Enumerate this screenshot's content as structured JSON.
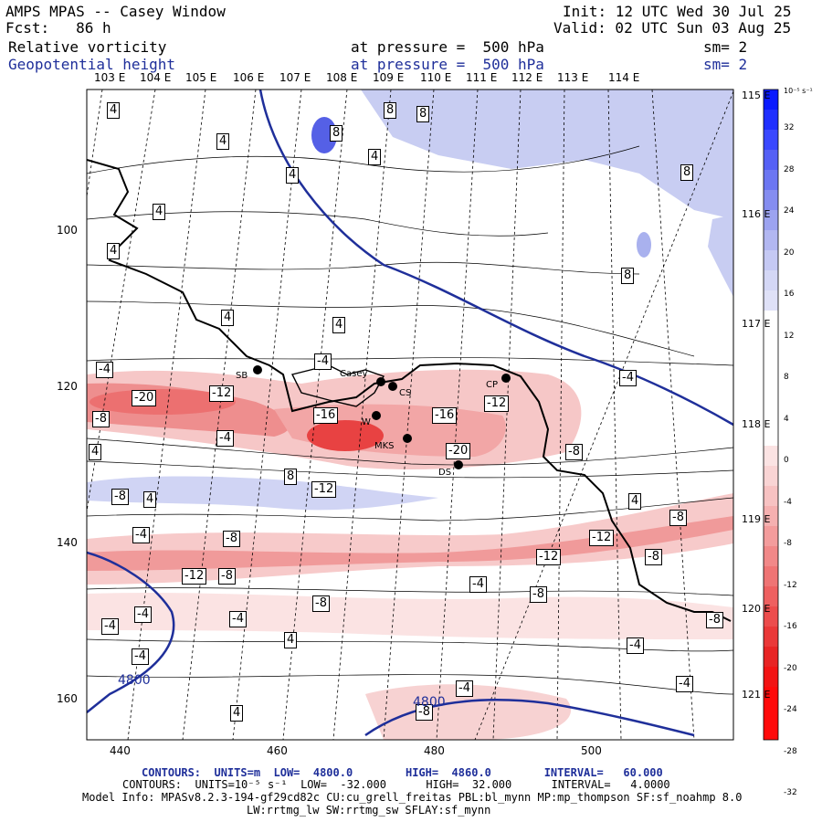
{
  "header": {
    "left": [
      "AMPS MPAS -- Casey Window",
      "Fcst:   86 h",
      "Relative vorticity",
      "Geopotential height"
    ],
    "mid": [
      "at pressure =  500 hPa",
      "at pressure =  500 hPa"
    ],
    "right_init": "Init: 12 UTC Wed 30 Jul 25",
    "right_valid": "Valid: 02 UTC Sun 03 Aug 25",
    "sm": [
      "sm= 2",
      "sm= 2"
    ]
  },
  "top_lon_labels": [
    "103 E",
    "104 E",
    "105 E",
    "106 E",
    "107 E",
    "108 E",
    "109 E",
    "110 E",
    "111 E",
    "112 E",
    "113 E",
    "114 E"
  ],
  "right_lon_labels": [
    "115 E",
    "116 E",
    "117 E",
    "118 E",
    "119 E",
    "120 E",
    "121 E"
  ],
  "y_axis": [
    "100",
    "120",
    "140",
    "160"
  ],
  "x_axis": [
    "440",
    "460",
    "480",
    "500"
  ],
  "colorbar": {
    "units": "10⁻⁵ s⁻¹",
    "labels": [
      "32",
      "28",
      "24",
      "20",
      "16",
      "12",
      "8",
      "4",
      "0",
      "-4",
      "-8",
      "-12",
      "-16",
      "-20",
      "-24",
      "-28",
      "-32"
    ],
    "colors": {
      "strong_pos": "#0a1aff",
      "pos": "#c8cdf2",
      "zero": "#ffffff",
      "neg": "#f6c7c7",
      "strong_neg": "#ff0a0a"
    }
  },
  "stations": [
    {
      "label": "SB"
    },
    {
      "label": "Casey"
    },
    {
      "label": "CS"
    },
    {
      "label": "CP"
    },
    {
      "label": "W"
    },
    {
      "label": "MKS"
    },
    {
      "label": "DS"
    }
  ],
  "contour_labels": [
    "4",
    "8",
    "-4",
    "-8",
    "-12",
    "-16",
    "-20",
    "4800"
  ],
  "footer": {
    "line1": "CONTOURS:  UNITS=m  LOW=  4800.0        HIGH=  4860.0        INTERVAL=   60.000",
    "line2": "CONTOURS:  UNITS=10⁻⁵ s⁻¹  LOW=  -32.000      HIGH=  32.000      INTERVAL=   4.0000",
    "line3": "Model Info: MPASv8.2.3-194-gf29cd82c CU:cu_grell_freitas PBL:bl_mynn MP:mp_thompson SF:sf_noahmp 8.0",
    "line4": "LW:rrtmg_lw SW:rrtmg_sw SFLAY:sf_mynn"
  }
}
